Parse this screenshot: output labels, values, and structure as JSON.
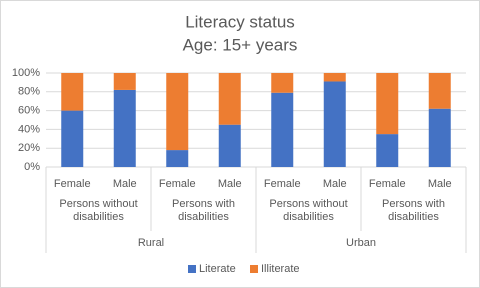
{
  "chart_data": {
    "type": "bar",
    "stacked": true,
    "title": "Literacy status",
    "subtitle": "Age: 15+ years",
    "categories": [
      "Female",
      "Male",
      "Female",
      "Male",
      "Female",
      "Male",
      "Female",
      "Male"
    ],
    "subgroups": [
      "Persons without disabilities",
      "Persons with disabilities",
      "Persons without disabilities",
      "Persons with disabilities"
    ],
    "groups": [
      "Rural",
      "Urban"
    ],
    "series": [
      {
        "name": "Literate",
        "color": "#4472c4",
        "values": [
          60,
          82,
          18,
          45,
          79,
          91,
          35,
          62
        ]
      },
      {
        "name": "Illiterate",
        "color": "#ed7d31",
        "values": [
          40,
          18,
          82,
          55,
          21,
          9,
          65,
          38
        ]
      }
    ],
    "ylim": [
      0,
      100
    ],
    "yticks": [
      {
        "value": 0,
        "label": "0%"
      },
      {
        "value": 20,
        "label": "20%"
      },
      {
        "value": 40,
        "label": "40%"
      },
      {
        "value": 60,
        "label": "60%"
      },
      {
        "value": 80,
        "label": "80%"
      },
      {
        "value": 100,
        "label": "100%"
      }
    ],
    "grid": true,
    "legend": "bottom"
  }
}
